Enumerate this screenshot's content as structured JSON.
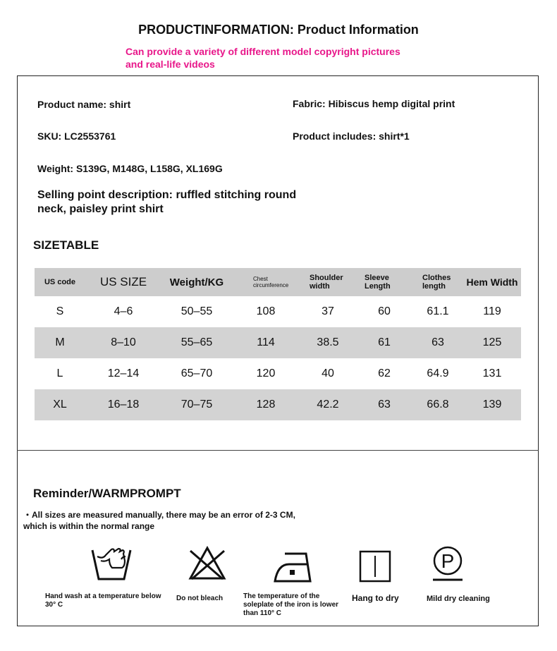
{
  "header": {
    "title": "PRODUCTINFORMATION: Product Information",
    "note": "Can provide a variety of different model copyright pictures and real-life videos"
  },
  "info": {
    "product_name": "Product name: shirt",
    "fabric": "Fabric: Hibiscus hemp digital print",
    "sku": "SKU: LC2553761",
    "includes": "Product includes: shirt*1",
    "weight": "Weight: S139G, M148G, L158G, XL169G",
    "selling_point": "Selling point description: ruffled stitching round neck, paisley print shirt"
  },
  "size_table": {
    "title": "SIZETABLE",
    "headers": [
      "US code",
      "US SIZE",
      "Weight/KG",
      "Chest circumference",
      "Shoulder width",
      "Sleeve Length",
      "Clothes length",
      "Hem Width"
    ],
    "rows": [
      [
        "S",
        "4–6",
        "50–55",
        "108",
        "37",
        "60",
        "61.1",
        "119"
      ],
      [
        "M",
        "8–10",
        "55–65",
        "114",
        "38.5",
        "61",
        "63",
        "125"
      ],
      [
        "L",
        "12–14",
        "65–70",
        "120",
        "40",
        "62",
        "64.9",
        "131"
      ],
      [
        "XL",
        "16–18",
        "70–75",
        "128",
        "42.2",
        "63",
        "66.8",
        "139"
      ]
    ]
  },
  "reminder": {
    "title": "Reminder/WARMPROMPT",
    "text": "・All sizes are measured manually, there may be an error of 2-3 CM, which is within the normal range",
    "care": [
      {
        "icon": "hand-wash-icon",
        "label": "Hand wash at a temperature below 30° C"
      },
      {
        "icon": "do-not-bleach-icon",
        "label": "Do not bleach"
      },
      {
        "icon": "iron-low-icon",
        "label": "The temperature of the soleplate of the iron is lower than 110° C"
      },
      {
        "icon": "hang-dry-icon",
        "label": "Hang to dry"
      },
      {
        "icon": "mild-dry-clean-icon",
        "label": "Mild dry cleaning"
      }
    ]
  },
  "colors": {
    "accent": "#e8178a",
    "table_gray": "#cdcdcd"
  }
}
